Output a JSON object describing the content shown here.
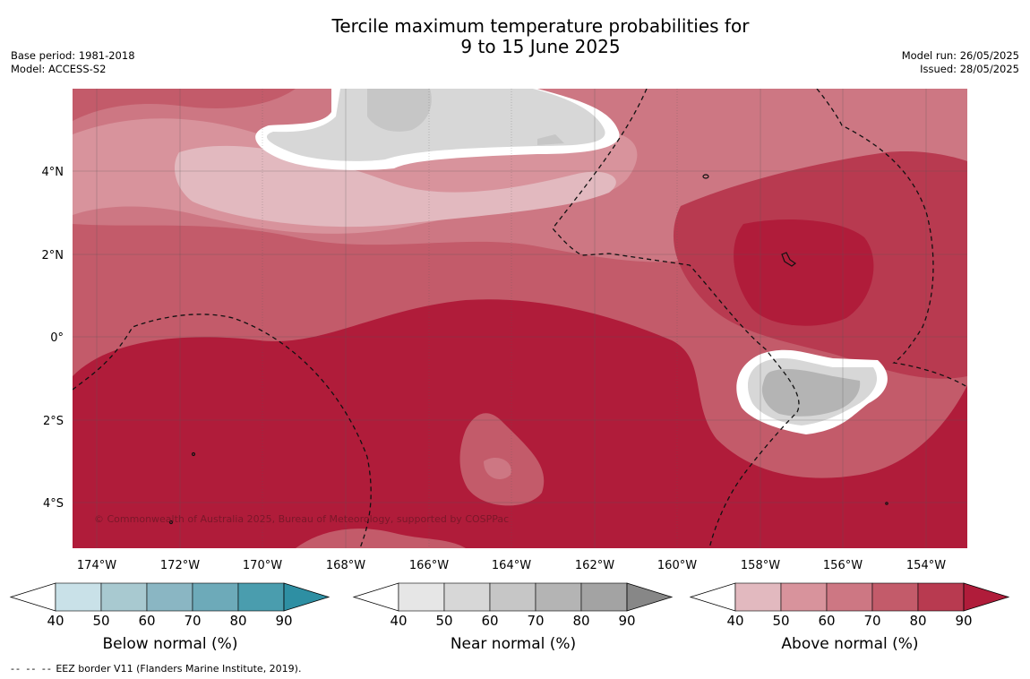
{
  "title_line1": "Tercile maximum temperature probabilities for",
  "title_line2": "9 to 15 June 2025",
  "base_period": "Base period: 1981-2018",
  "model": "Model: ACCESS-S2",
  "model_run": "Model run: 26/05/2025",
  "issued": "Issued: 28/05/2025",
  "copyright": "© Commonwealth of Australia 2025, Bureau of Meteorology, supported by COSPPac",
  "lat_labels": [
    "4°N",
    "2°N",
    "0°",
    "2°S",
    "4°S"
  ],
  "lon_labels": [
    "174°W",
    "172°W",
    "170°W",
    "168°W",
    "166°W",
    "164°W",
    "162°W",
    "160°W",
    "158°W",
    "156°W",
    "154°W"
  ],
  "legends": {
    "below": {
      "title": "Below normal (%)",
      "ticks": [
        "40",
        "50",
        "60",
        "70",
        "80",
        "90"
      ],
      "colors": [
        "#ffffff",
        "#c9e1e8",
        "#a8c9d0",
        "#8ab6c3",
        "#6daab9",
        "#4a9dae",
        "#2e8fa3"
      ]
    },
    "near": {
      "title": "Near normal (%)",
      "ticks": [
        "40",
        "50",
        "60",
        "70",
        "80",
        "90"
      ],
      "colors": [
        "#ffffff",
        "#e6e6e6",
        "#d7d7d7",
        "#c6c6c6",
        "#b4b4b4",
        "#a3a3a3",
        "#878787"
      ]
    },
    "above": {
      "title": "Above normal (%)",
      "ticks": [
        "40",
        "50",
        "60",
        "70",
        "80",
        "90"
      ],
      "colors": [
        "#ffffff",
        "#e2b9bf",
        "#d8939c",
        "#cd7783",
        "#c35b6a",
        "#b83a50",
        "#b01c3a"
      ]
    }
  },
  "footer_dashes": "-- -- --",
  "footer_text": "EEZ border V11 (Flanders Marine Institute, 2019)."
}
